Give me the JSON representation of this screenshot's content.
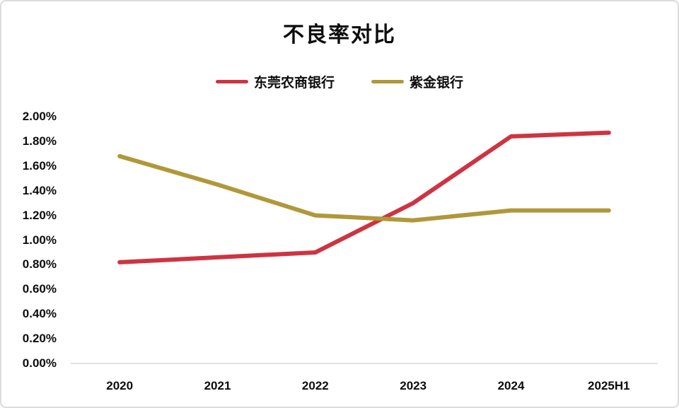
{
  "chart_data": {
    "type": "line",
    "title": "不良率对比",
    "categories": [
      "2020",
      "2021",
      "2022",
      "2023",
      "2024",
      "2025H1"
    ],
    "series": [
      {
        "name": "东莞农商银行",
        "color": "#CF3341",
        "values": [
          0.82,
          0.86,
          0.9,
          1.3,
          1.84,
          1.87
        ]
      },
      {
        "name": "紫金银行",
        "color": "#B0983A",
        "values": [
          1.68,
          1.45,
          1.2,
          1.16,
          1.24,
          1.24
        ]
      }
    ],
    "y_ticks": [
      "2.00%",
      "1.80%",
      "1.60%",
      "1.40%",
      "1.20%",
      "1.00%",
      "0.80%",
      "0.60%",
      "0.40%",
      "0.20%",
      "0.00%"
    ],
    "ylim": [
      0,
      2.0
    ],
    "y_tick_step": 0.2,
    "unit": "%",
    "grid": false,
    "legend_position": "top",
    "axis_color": "#d9d9d9"
  }
}
